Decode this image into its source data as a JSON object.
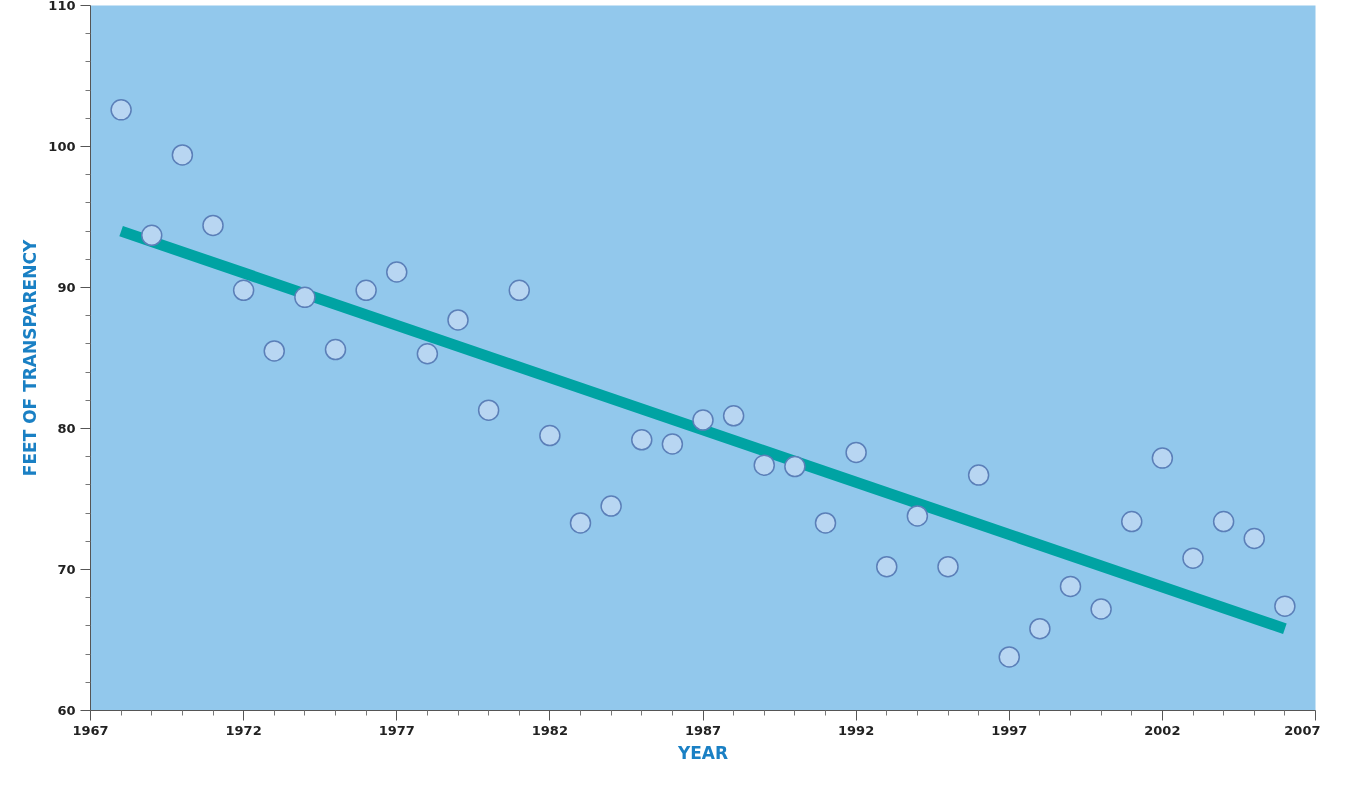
{
  "chart_data": {
    "type": "scatter",
    "xlabel": "YEAR",
    "ylabel": "FEET OF TRANSPARENCY",
    "x": [
      1968,
      1969,
      1970,
      1971,
      1972,
      1973,
      1974,
      1975,
      1976,
      1977,
      1978,
      1979,
      1980,
      1981,
      1982,
      1983,
      1984,
      1985,
      1986,
      1987,
      1988,
      1989,
      1990,
      1991,
      1992,
      1993,
      1994,
      1995,
      1996,
      1997,
      1998,
      1999,
      2000,
      2001,
      2002,
      2003,
      2004,
      2005,
      2006
    ],
    "series": [
      {
        "color": "#b8d6f2",
        "marker": "circle",
        "values": [
          102.6,
          93.7,
          99.4,
          94.4,
          89.8,
          85.5,
          89.3,
          85.6,
          89.8,
          91.1,
          85.3,
          87.7,
          81.3,
          89.8,
          79.5,
          73.3,
          74.5,
          79.2,
          78.9,
          80.6,
          80.9,
          77.4,
          77.3,
          73.3,
          78.3,
          70.2,
          73.8,
          70.2,
          76.7,
          63.8,
          65.8,
          68.8,
          67.2,
          73.4,
          77.9,
          70.8,
          73.4,
          72.2,
          67.4
        ]
      },
      {
        "type": "line",
        "color": "#00a3a3",
        "x": [
          1968,
          2006
        ],
        "values": [
          94.0,
          65.8
        ],
        "line_style": "solid"
      }
    ],
    "xlim": [
      1967,
      2007
    ],
    "ylim": [
      60,
      110
    ],
    "xticks": [
      1967,
      1972,
      1977,
      1982,
      1987,
      1992,
      1997,
      2002,
      2007
    ],
    "yticks": [
      60,
      70,
      80,
      90,
      100,
      110
    ],
    "grid": false
  }
}
